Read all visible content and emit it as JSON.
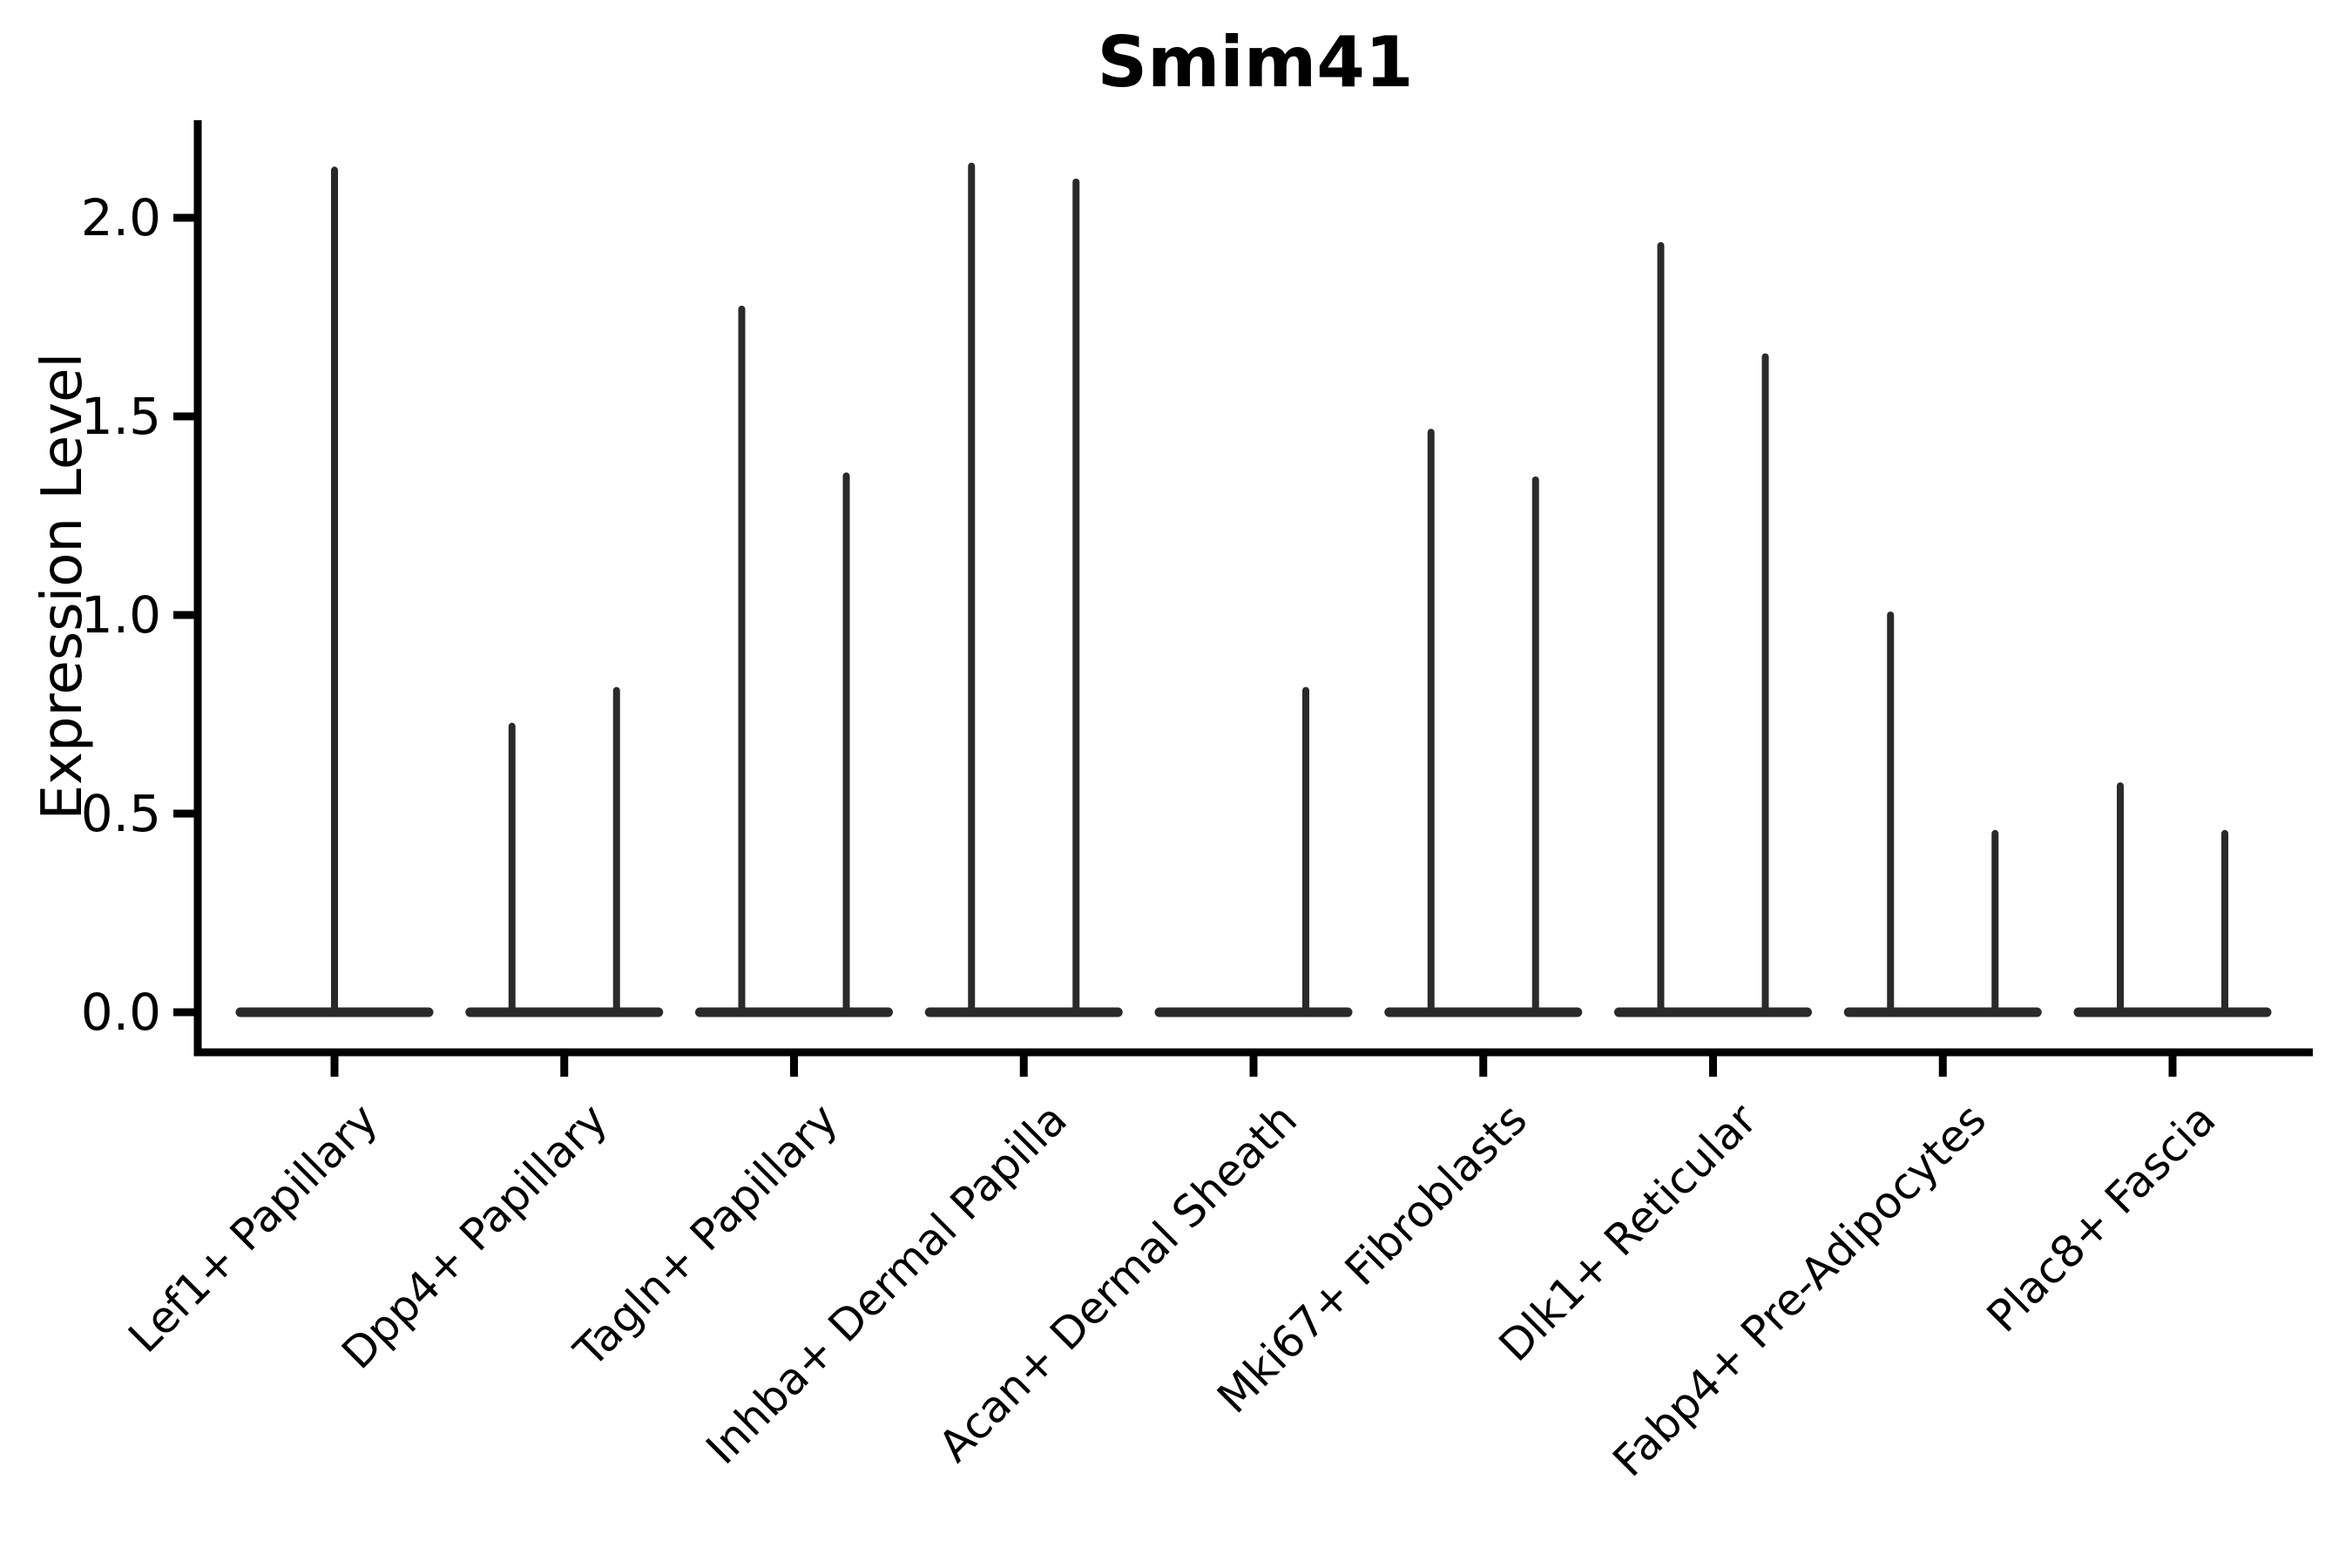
{
  "chart_data": {
    "type": "violin",
    "title": "Smim41",
    "ylabel": "Expression Level",
    "xlabel": "",
    "ylim": [
      -0.1,
      2.25
    ],
    "grid": false,
    "legend": null,
    "background_color": "#ffffff",
    "spine_color": "#000000",
    "violin_color": "#2a2a2a",
    "yticks": [
      {
        "value": 0.0,
        "label": "0.0"
      },
      {
        "value": 0.5,
        "label": "0.5"
      },
      {
        "value": 1.0,
        "label": "1.0"
      },
      {
        "value": 1.5,
        "label": "1.5"
      },
      {
        "value": 2.0,
        "label": "2.0"
      }
    ],
    "categories": [
      {
        "label": "Lef1+ Papillary",
        "violins": [
          {
            "position": "center",
            "max_expression": 2.12
          }
        ]
      },
      {
        "label": "Dpp4+ Papillary",
        "violins": [
          {
            "position": "left",
            "max_expression": 0.72
          },
          {
            "position": "right",
            "max_expression": 0.81
          }
        ]
      },
      {
        "label": "Tagln+ Papillary",
        "violins": [
          {
            "position": "left",
            "max_expression": 1.77
          },
          {
            "position": "right",
            "max_expression": 1.35
          }
        ]
      },
      {
        "label": "Inhba+ Dermal Papilla",
        "violins": [
          {
            "position": "left",
            "max_expression": 2.13
          },
          {
            "position": "right",
            "max_expression": 2.09
          }
        ]
      },
      {
        "label": "Acan+ Dermal Sheath",
        "violins": [
          {
            "position": "left",
            "max_expression": 0.0
          },
          {
            "position": "right",
            "max_expression": 0.81
          }
        ]
      },
      {
        "label": "Mki67+ Fibroblasts",
        "violins": [
          {
            "position": "left",
            "max_expression": 1.46
          },
          {
            "position": "right",
            "max_expression": 1.34
          }
        ]
      },
      {
        "label": "Dlk1+ Reticular",
        "violins": [
          {
            "position": "left",
            "max_expression": 1.93
          },
          {
            "position": "right",
            "max_expression": 1.65
          }
        ]
      },
      {
        "label": "Fabp4+ Pre-Adipocytes",
        "violins": [
          {
            "position": "left",
            "max_expression": 1.0
          },
          {
            "position": "right",
            "max_expression": 0.45
          }
        ]
      },
      {
        "label": "Plac8+ Fascia",
        "violins": [
          {
            "position": "left",
            "max_expression": 0.57
          },
          {
            "position": "right",
            "max_expression": 0.45
          }
        ]
      }
    ]
  }
}
